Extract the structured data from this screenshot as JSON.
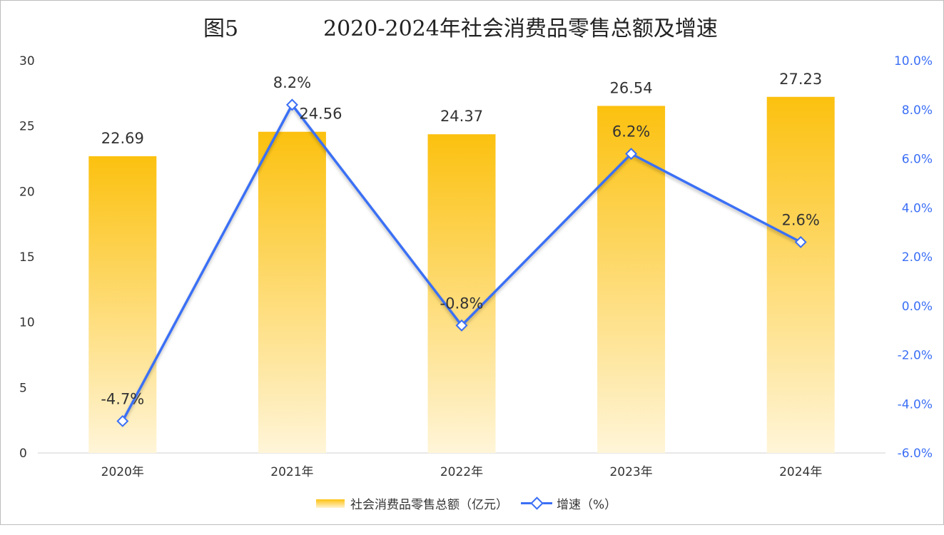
{
  "title": {
    "figure": "图5",
    "text": "2020-2024年社会消费品零售总额及增速"
  },
  "chart_data": {
    "type": "bar+line",
    "categories": [
      "2020年",
      "2021年",
      "2022年",
      "2023年",
      "2024年"
    ],
    "series": [
      {
        "name": "社会消费品零售总额（亿元）",
        "type": "bar",
        "axis": "left",
        "values": [
          22.69,
          24.56,
          24.37,
          26.54,
          27.23
        ],
        "labels": [
          "22.69",
          "24.56",
          "24.37",
          "26.54",
          "27.23"
        ],
        "color": "#fcc10f"
      },
      {
        "name": "增速（%）",
        "type": "line",
        "axis": "right",
        "values": [
          -4.7,
          8.2,
          -0.8,
          6.2,
          2.6
        ],
        "labels": [
          "-4.7%",
          "8.2%",
          "-0.8%",
          "6.2%",
          "2.6%"
        ],
        "color": "#3b6ff5"
      }
    ],
    "y_left": {
      "range": [
        0,
        30
      ],
      "ticks": [
        "0",
        "5",
        "10",
        "15",
        "20",
        "25",
        "30"
      ]
    },
    "y_right": {
      "range": [
        -6,
        10
      ],
      "ticks": [
        "-6.0%",
        "-4.0%",
        "-2.0%",
        "0.0%",
        "2.0%",
        "4.0%",
        "6.0%",
        "8.0%",
        "10.0%"
      ]
    },
    "grid": false,
    "legend": "bottom"
  }
}
